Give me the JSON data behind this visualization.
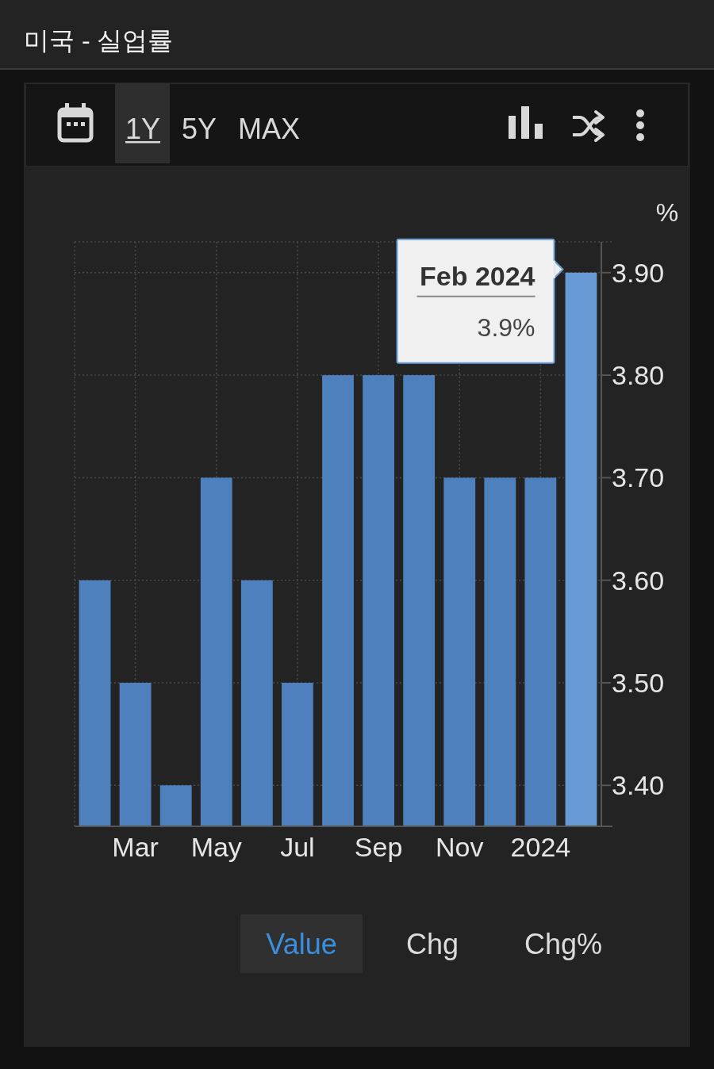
{
  "chart_data": {
    "type": "bar",
    "title": "미국 - 실업률",
    "ylabel": "%",
    "categories": [
      null,
      "Mar",
      null,
      "May",
      null,
      "Jul",
      null,
      "Sep",
      null,
      "Nov",
      null,
      "2024",
      null
    ],
    "values": [
      3.6,
      3.5,
      3.4,
      3.7,
      3.6,
      3.5,
      3.8,
      3.8,
      3.8,
      3.7,
      3.7,
      3.7,
      3.9
    ],
    "colors": [
      "#4e80be",
      "#4e80be",
      "#4e80be",
      "#4e80be",
      "#4e80be",
      "#4e80be",
      "#4e80be",
      "#4e80be",
      "#4e80be",
      "#4e80be",
      "#4e80be",
      "#4e80be",
      "#689bd6"
    ],
    "ylim": [
      3.36,
      3.93
    ],
    "yticks": [
      {
        "value": 3.4,
        "label": "3.40"
      },
      {
        "value": 3.5,
        "label": "3.50"
      },
      {
        "value": 3.6,
        "label": "3.60"
      },
      {
        "value": 3.7,
        "label": "3.70"
      },
      {
        "value": 3.8,
        "label": "3.80"
      },
      {
        "value": 3.9,
        "label": "3.90"
      }
    ],
    "grid": true,
    "annotations": [
      "1Y",
      "5Y",
      "MAX",
      "Value",
      "Chg",
      "Chg%",
      "Feb 2024\n3.9%"
    ]
  }
}
